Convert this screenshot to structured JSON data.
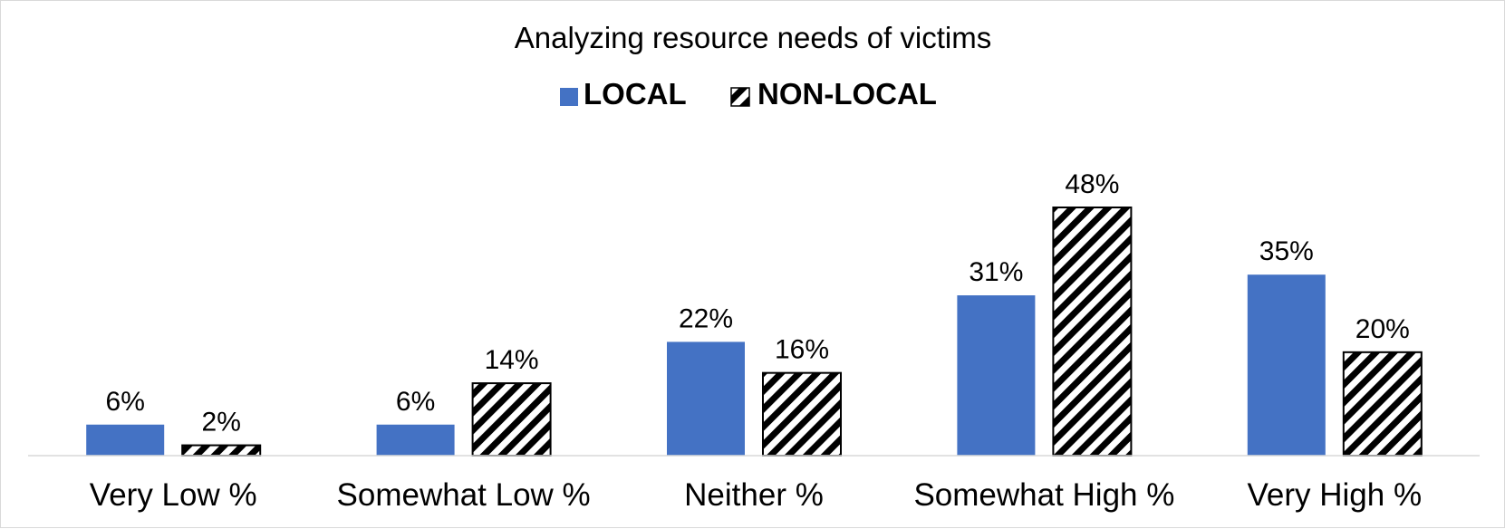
{
  "chart_data": {
    "type": "bar",
    "title": "Analyzing resource needs of victims",
    "categories": [
      "Very Low %",
      "Somewhat Low %",
      "Neither %",
      "Somewhat High %",
      "Very High %"
    ],
    "series": [
      {
        "name": "LOCAL",
        "values": [
          6,
          6,
          22,
          31,
          35
        ],
        "labels": [
          "6%",
          "6%",
          "22%",
          "31%",
          "35%"
        ],
        "color": "#4472c4",
        "fill": "solid"
      },
      {
        "name": "NON-LOCAL",
        "values": [
          2,
          14,
          16,
          48,
          20
        ],
        "labels": [
          "2%",
          "14%",
          "16%",
          "48%",
          "20%"
        ],
        "color": "#000000",
        "fill": "diagonal-hatch"
      }
    ],
    "xlabel": "",
    "ylabel": "",
    "ylim": [
      0,
      48
    ],
    "grid": false,
    "legend": "top-center"
  }
}
